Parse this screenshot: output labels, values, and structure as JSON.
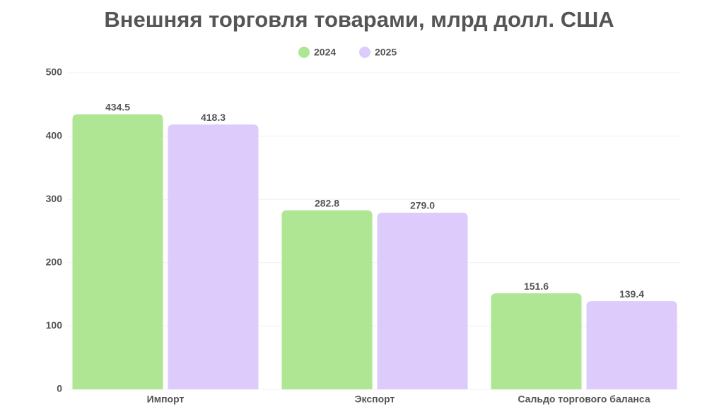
{
  "chart_data": {
    "type": "bar",
    "title": "Внешняя торговля товарами, млрд долл. США",
    "categories": [
      "Импорт",
      "Экспорт",
      "Сальдо торгового баланса"
    ],
    "series": [
      {
        "name": "2024",
        "color": "#aee694",
        "values": [
          434.5,
          282.8,
          151.6
        ],
        "value_labels": [
          "434.5",
          "282.8",
          "151.6"
        ]
      },
      {
        "name": "2025",
        "color": "#dccbfb",
        "values": [
          418.3,
          279.0,
          139.4
        ],
        "value_labels": [
          "418.3",
          "279.0",
          "139.4"
        ]
      }
    ],
    "ylim": [
      0,
      500
    ],
    "yticks": [
      0,
      100,
      200,
      300,
      400,
      500
    ],
    "grid": true,
    "legend": "top"
  }
}
